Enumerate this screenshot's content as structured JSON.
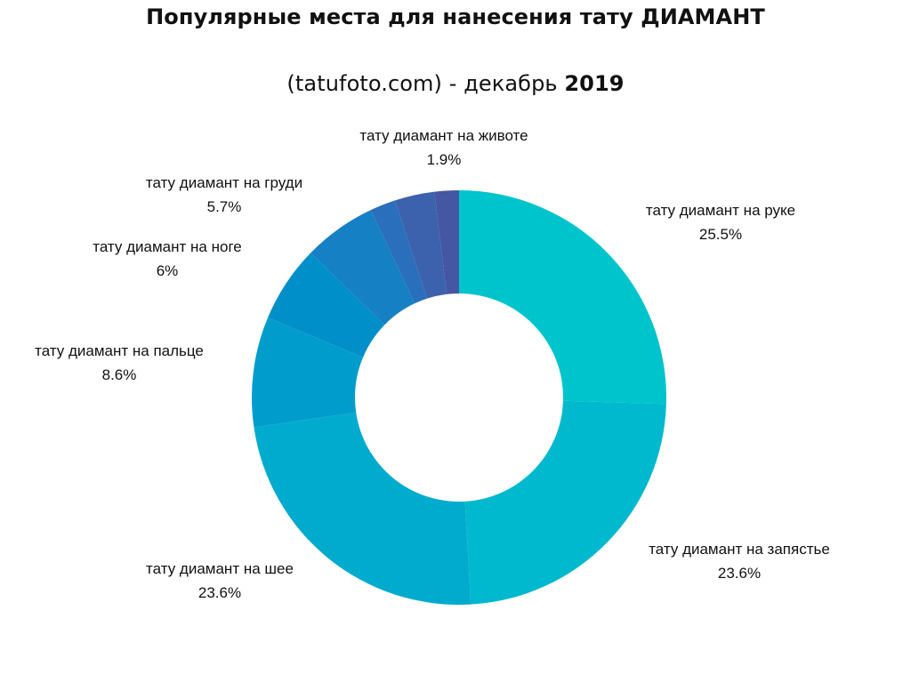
{
  "chart_data": {
    "type": "pie",
    "variant": "donut",
    "title_line1": "Популярные места для нанесения тату ДИАМАНТ",
    "title_line2_site": "(tatufoto.com)",
    "title_line2_sep": " - декабрь ",
    "title_line2_year": "2019",
    "slices": [
      {
        "label": "тату диамант на руке",
        "value": 25.5,
        "value_label": "25.5%",
        "color": "#00C4CC"
      },
      {
        "label": "тату диамант на запястье",
        "value": 23.6,
        "value_label": "23.6%",
        "color": "#00B9CE"
      },
      {
        "label": "тату диамант на шее",
        "value": 23.6,
        "value_label": "23.6%",
        "color": "#00ABCE"
      },
      {
        "label": "тату диамант на пальце",
        "value": 8.6,
        "value_label": "8.6%",
        "color": "#009DCC"
      },
      {
        "label": "тату диамант на ноге",
        "value": 6,
        "value_label": "6%",
        "color": "#008FC9"
      },
      {
        "label": "тату диамант на груди",
        "value": 5.7,
        "value_label": "5.7%",
        "color": "#1680C4"
      },
      {
        "label": "",
        "value": 2.0,
        "value_label": "",
        "color": "#2A6FBB"
      },
      {
        "label": "",
        "value": 3.1,
        "value_label": "",
        "color": "#3C62AE"
      },
      {
        "label": "тату диамант на животе",
        "value": 1.9,
        "value_label": "1.9%",
        "color": "#4557A2"
      }
    ]
  }
}
